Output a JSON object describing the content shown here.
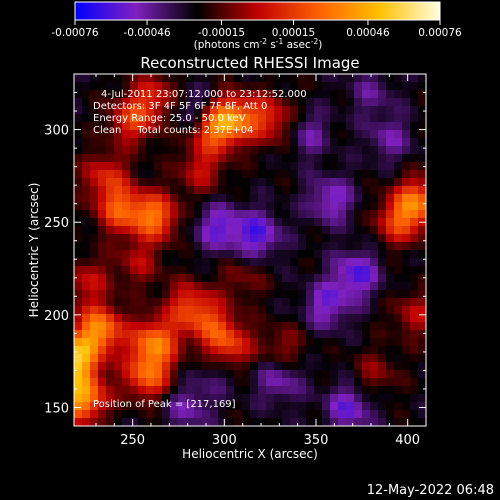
{
  "chart_data": {
    "type": "heatmap",
    "title": "Reconstructed RHESSI Image",
    "xlabel": "Heliocentric X (arcsec)",
    "ylabel": "Heliocentric Y (arcsec)",
    "xlim": [
      218,
      410
    ],
    "ylim": [
      140,
      330
    ],
    "x_ticks": [
      250,
      300,
      350,
      400
    ],
    "y_ticks": [
      150,
      200,
      250,
      300
    ],
    "colorbar": {
      "range": [
        -0.00076,
        0.00076
      ],
      "ticks": [
        "-0.00076",
        "-0.00046",
        "-0.00015",
        "0.00015",
        "0.00046",
        "0.00076"
      ],
      "tick_values": [
        -0.00076,
        -0.00046,
        -0.00015,
        0.00015,
        0.00046,
        0.00076
      ],
      "units_prefix": "(photons cm",
      "units_sup1": "-2",
      "units_mid1": " s",
      "units_sup2": "-1",
      "units_mid2": " asec",
      "units_sup3": "-2",
      "units_suffix": ")",
      "colors": [
        "#0000ff",
        "#8020c0",
        "#000000",
        "#c00000",
        "#ff6000",
        "#ffc000",
        "#ffffe0"
      ]
    },
    "annotations": [
      "4-Jul-2011 23:07:12.000 to 23:12:52.000",
      "Detectors: 3F 4F 5F 6F 7F 8F, Att 0",
      "Energy Range: 25.0 - 50.0 keV",
      "Clean     Total counts: 2.37E+04"
    ],
    "peak_label": "Position of Peak = [217,169]",
    "grid": false,
    "sources": [
      {
        "x": 218,
        "y": 176,
        "value": 0.00076
      },
      {
        "x": 222,
        "y": 155,
        "value": 0.00068
      },
      {
        "x": 232,
        "y": 192,
        "value": 0.0006
      },
      {
        "x": 262,
        "y": 185,
        "value": 0.00055
      },
      {
        "x": 258,
        "y": 167,
        "value": 0.00048
      },
      {
        "x": 292,
        "y": 196,
        "value": 0.0003
      },
      {
        "x": 302,
        "y": 183,
        "value": 0.00042
      },
      {
        "x": 280,
        "y": 205,
        "value": 0.00035
      },
      {
        "x": 262,
        "y": 253,
        "value": 0.00052
      },
      {
        "x": 243,
        "y": 257,
        "value": 0.00044
      },
      {
        "x": 235,
        "y": 275,
        "value": 0.00032
      },
      {
        "x": 250,
        "y": 305,
        "value": 0.00038
      },
      {
        "x": 262,
        "y": 318,
        "value": 0.0003
      },
      {
        "x": 293,
        "y": 300,
        "value": 0.00042
      },
      {
        "x": 304,
        "y": 306,
        "value": 0.00056
      },
      {
        "x": 323,
        "y": 307,
        "value": 0.00028
      },
      {
        "x": 287,
        "y": 278,
        "value": 0.00026
      },
      {
        "x": 335,
        "y": 300,
        "value": 0.0002
      },
      {
        "x": 405,
        "y": 261,
        "value": 0.0005
      },
      {
        "x": 395,
        "y": 250,
        "value": 0.00036
      },
      {
        "x": 404,
        "y": 200,
        "value": 0.00024
      },
      {
        "x": 332,
        "y": 182,
        "value": 0.0002
      },
      {
        "x": 382,
        "y": 168,
        "value": 0.00018
      },
      {
        "x": 253,
        "y": 228,
        "value": 0.00022
      },
      {
        "x": 310,
        "y": 220,
        "value": 0.00016
      },
      {
        "x": 225,
        "y": 218,
        "value": 0.00026
      },
      {
        "x": 358,
        "y": 262,
        "value": -0.00028
      },
      {
        "x": 343,
        "y": 298,
        "value": -0.0003
      },
      {
        "x": 318,
        "y": 243,
        "value": -0.00034
      },
      {
        "x": 297,
        "y": 247,
        "value": -0.0003
      },
      {
        "x": 285,
        "y": 309,
        "value": -0.00024
      },
      {
        "x": 372,
        "y": 222,
        "value": -0.00034
      },
      {
        "x": 356,
        "y": 205,
        "value": -0.00028
      },
      {
        "x": 330,
        "y": 165,
        "value": -0.00024
      },
      {
        "x": 368,
        "y": 150,
        "value": -0.0003
      },
      {
        "x": 280,
        "y": 150,
        "value": -0.00022
      },
      {
        "x": 296,
        "y": 170,
        "value": -0.00014
      },
      {
        "x": 390,
        "y": 295,
        "value": -0.0002
      },
      {
        "x": 380,
        "y": 320,
        "value": -0.00016
      }
    ]
  },
  "footer": {
    "timestamp": "12-May-2022 06:48"
  }
}
